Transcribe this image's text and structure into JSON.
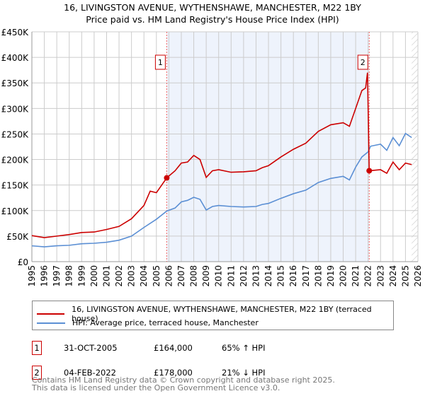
{
  "chart_data": {
    "type": "line",
    "title": "16, LIVINGSTON AVENUE, WYTHENSHAWE, MANCHESTER, M22 1BY",
    "subtitle": "Price paid vs. HM Land Registry's House Price Index (HPI)",
    "xlim": [
      1995,
      2026
    ],
    "ylim": [
      0,
      450000
    ],
    "y_ticks": [
      {
        "v": 0,
        "l": "£0"
      },
      {
        "v": 50000,
        "l": "£50K"
      },
      {
        "v": 100000,
        "l": "£100K"
      },
      {
        "v": 150000,
        "l": "£150K"
      },
      {
        "v": 200000,
        "l": "£200K"
      },
      {
        "v": 250000,
        "l": "£250K"
      },
      {
        "v": 300000,
        "l": "£300K"
      },
      {
        "v": 350000,
        "l": "£350K"
      },
      {
        "v": 400000,
        "l": "£400K"
      },
      {
        "v": 450000,
        "l": "£450K"
      }
    ],
    "x_ticks": [
      "1995",
      "1996",
      "1997",
      "1998",
      "1999",
      "2000",
      "2001",
      "2002",
      "2003",
      "2004",
      "2005",
      "2006",
      "2007",
      "2008",
      "2009",
      "2010",
      "2011",
      "2012",
      "2013",
      "2014",
      "2015",
      "2016",
      "2017",
      "2018",
      "2019",
      "2020",
      "2021",
      "2022",
      "2023",
      "2024",
      "2025",
      "2026"
    ],
    "shaded_range": [
      2005.83,
      2022.09
    ],
    "forecast_hatch_from": 2025.5,
    "series": [
      {
        "name": "16, LIVINGSTON AVENUE, WYTHENSHAWE, MANCHESTER, M22 1BY (terraced house)",
        "color": "#cc0000",
        "x": [
          1995,
          1996,
          1997,
          1998,
          1999,
          2000,
          2001,
          2002,
          2003,
          2004,
          2004.5,
          2005,
          2005.83,
          2006.5,
          2007,
          2007.5,
          2008,
          2008.5,
          2009,
          2009.5,
          2010,
          2011,
          2012,
          2013,
          2013.5,
          2014,
          2015,
          2016,
          2017,
          2018,
          2019,
          2020,
          2020.5,
          2021,
          2021.5,
          2021.8,
          2021.95,
          2022.09,
          2023,
          2023.5,
          2024,
          2024.5,
          2025,
          2025.5
        ],
        "y": [
          51000,
          47000,
          50000,
          53000,
          57000,
          58000,
          63000,
          69000,
          84000,
          110000,
          138000,
          135000,
          164000,
          178000,
          193000,
          195000,
          208000,
          200000,
          165000,
          178000,
          180000,
          175000,
          176000,
          178000,
          184000,
          188000,
          205000,
          220000,
          232000,
          255000,
          268000,
          272000,
          265000,
          300000,
          335000,
          340000,
          370000,
          178000,
          180000,
          173000,
          195000,
          180000,
          193000,
          190000
        ]
      },
      {
        "name": "HPI: Average price, terraced house, Manchester",
        "color": "#5b8fd4",
        "x": [
          1995,
          1996,
          1997,
          1998,
          1999,
          2000,
          2001,
          2002,
          2003,
          2004,
          2005,
          2005.83,
          2006.5,
          2007,
          2007.5,
          2008,
          2008.5,
          2009,
          2009.5,
          2010,
          2011,
          2012,
          2013,
          2013.5,
          2014,
          2015,
          2016,
          2017,
          2018,
          2019,
          2020,
          2020.5,
          2021,
          2021.5,
          2022,
          2022.2,
          2023,
          2023.5,
          2024,
          2024.5,
          2025,
          2025.5
        ],
        "y": [
          31000,
          29000,
          31000,
          32000,
          35000,
          36000,
          38000,
          42000,
          50000,
          67000,
          83000,
          99000,
          105000,
          117000,
          120000,
          126000,
          122000,
          101000,
          108000,
          110000,
          108000,
          107000,
          108000,
          112000,
          114000,
          124000,
          133000,
          140000,
          155000,
          163000,
          167000,
          160000,
          185000,
          205000,
          215000,
          226000,
          230000,
          218000,
          243000,
          227000,
          251000,
          243000
        ]
      }
    ],
    "sales": [
      {
        "n": "1",
        "x": 2005.83,
        "y": 164000
      },
      {
        "n": "2",
        "x": 2022.09,
        "y": 178000
      }
    ]
  },
  "legend": {
    "red": "16, LIVINGSTON AVENUE, WYTHENSHAWE, MANCHESTER, M22 1BY (terraced house)",
    "blue": "HPI: Average price, terraced house, Manchester"
  },
  "transactions": [
    {
      "n": "1",
      "date": "31-OCT-2005",
      "price": "£164,000",
      "hpi": "65% ↑ HPI"
    },
    {
      "n": "2",
      "date": "04-FEB-2022",
      "price": "£178,000",
      "hpi": "21% ↓ HPI"
    }
  ],
  "footer": [
    "Contains HM Land Registry data © Crown copyright and database right 2025.",
    "This data is licensed under the Open Government Licence v3.0."
  ]
}
